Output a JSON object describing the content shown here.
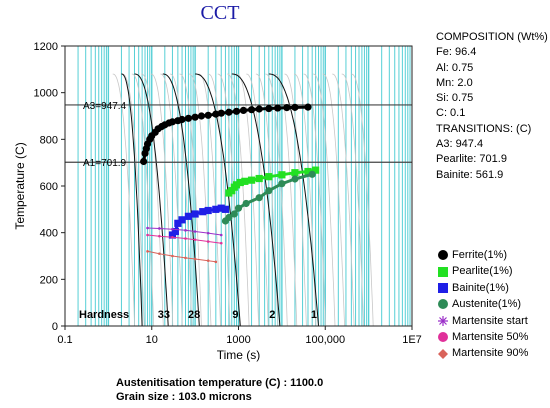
{
  "title": "CCT",
  "composition": {
    "heading": "COMPOSITION (Wt%)",
    "items": [
      "Fe: 96.4",
      "Al: 0.75",
      "Mn: 2.0",
      "Si: 0.75",
      "C: 0.1"
    ]
  },
  "transitions": {
    "heading": "TRANSITIONS: (C)",
    "items": [
      "A3: 947.4",
      "Pearlite: 701.9",
      "Bainite: 561.9"
    ]
  },
  "legend": [
    {
      "label": "Ferrite(1%)",
      "shape": "circle",
      "color": "#000000"
    },
    {
      "label": "Pearlite(1%)",
      "shape": "square",
      "color": "#22e022"
    },
    {
      "label": "Bainite(1%)",
      "shape": "square",
      "color": "#1f1fe6"
    },
    {
      "label": "Austenite(1%)",
      "shape": "circle",
      "color": "#2e8b57"
    },
    {
      "label": "Martensite start",
      "shape": "asterisk",
      "color": "#9b30c9"
    },
    {
      "label": "Martensite 50%",
      "shape": "circle",
      "color": "#e0309a"
    },
    {
      "label": "Martensite 90%",
      "shape": "diamond",
      "color": "#d9635a"
    }
  ],
  "footer": {
    "austenitisation": "Austenitisation temperature (C) : 1100.0",
    "grain": "Grain size : 103.0 microns"
  },
  "chart_data": {
    "type": "line",
    "xlabel": "Time (s)",
    "ylabel": "Temperature (C)",
    "x_scale": "log",
    "xlim": [
      0.1,
      10000000
    ],
    "ylim": [
      0,
      1200
    ],
    "x_ticks": [
      {
        "value": 0.1,
        "label": "0.1"
      },
      {
        "value": 10,
        "label": "10"
      },
      {
        "value": 1000,
        "label": "1000"
      },
      {
        "value": 100000,
        "label": "100,000"
      },
      {
        "value": 10000000,
        "label": "1E7"
      }
    ],
    "y_ticks": [
      0,
      200,
      400,
      600,
      800,
      1000,
      1200
    ],
    "reference_lines": [
      {
        "label": "A3=947.4",
        "value": 947.4
      },
      {
        "label": "A1=701.9",
        "value": 701.9
      }
    ],
    "hardness": {
      "label": "Hardness",
      "values": [
        {
          "value": "33",
          "time": 19
        },
        {
          "value": "28",
          "time": 95
        },
        {
          "value": "9",
          "time": 850
        },
        {
          "value": "2",
          "time": 6000
        },
        {
          "value": "1",
          "time": 55000
        }
      ]
    },
    "cooling_curves": [
      {
        "start_time": 2,
        "end_time": 6
      },
      {
        "start_time": 4,
        "end_time": 24
      },
      {
        "start_time": 18,
        "end_time": 125
      },
      {
        "start_time": 100,
        "end_time": 1100
      },
      {
        "start_time": 700,
        "end_time": 9000
      },
      {
        "start_time": 5000,
        "end_time": 70000
      }
    ],
    "series": [
      {
        "name": "Ferrite(1%)",
        "marker": "circle",
        "color": "#000000",
        "points": [
          [
            6.5,
            705
          ],
          [
            7,
            740
          ],
          [
            7.5,
            760
          ],
          [
            8,
            780
          ],
          [
            9,
            800
          ],
          [
            10,
            815
          ],
          [
            12,
            830
          ],
          [
            14,
            845
          ],
          [
            17,
            855
          ],
          [
            20,
            862
          ],
          [
            25,
            870
          ],
          [
            30,
            875
          ],
          [
            40,
            880
          ],
          [
            50,
            885
          ],
          [
            70,
            890
          ],
          [
            100,
            895
          ],
          [
            140,
            900
          ],
          [
            200,
            903
          ],
          [
            300,
            908
          ],
          [
            400,
            912
          ],
          [
            600,
            916
          ],
          [
            900,
            920
          ],
          [
            1300,
            924
          ],
          [
            2000,
            927
          ],
          [
            3000,
            930
          ],
          [
            5000,
            932
          ],
          [
            8000,
            934
          ],
          [
            13000,
            936
          ],
          [
            20000,
            937
          ],
          [
            40000,
            938
          ]
        ]
      },
      {
        "name": "Pearlite(1%)",
        "marker": "square",
        "color": "#22e022",
        "points": [
          [
            600,
            570
          ],
          [
            700,
            580
          ],
          [
            800,
            595
          ],
          [
            900,
            605
          ],
          [
            1100,
            615
          ],
          [
            1400,
            620
          ],
          [
            2000,
            625
          ],
          [
            3000,
            632
          ],
          [
            5000,
            640
          ],
          [
            10000,
            648
          ],
          [
            20000,
            657
          ],
          [
            40000,
            662
          ],
          [
            60000,
            668
          ]
        ]
      },
      {
        "name": "Bainite(1%)",
        "marker": "square",
        "color": "#1f1fe6",
        "points": [
          [
            30,
            390
          ],
          [
            35,
            405
          ],
          [
            40,
            440
          ],
          [
            50,
            455
          ],
          [
            70,
            470
          ],
          [
            100,
            480
          ],
          [
            150,
            490
          ],
          [
            200,
            495
          ],
          [
            300,
            500
          ],
          [
            400,
            505
          ],
          [
            500,
            500
          ]
        ]
      },
      {
        "name": "Austenite(1%)",
        "marker": "circle",
        "color": "#2e8b57",
        "points": [
          [
            500,
            450
          ],
          [
            600,
            465
          ],
          [
            800,
            480
          ],
          [
            1000,
            505
          ],
          [
            1500,
            525
          ],
          [
            3000,
            550
          ],
          [
            5000,
            580
          ],
          [
            10000,
            610
          ],
          [
            20000,
            630
          ],
          [
            50000,
            650
          ]
        ]
      },
      {
        "name": "Martensite start",
        "marker": "asterisk",
        "color": "#9b30c9",
        "points": [
          [
            8,
            420
          ],
          [
            15,
            418
          ],
          [
            30,
            415
          ],
          [
            60,
            410
          ],
          [
            100,
            405
          ],
          [
            200,
            398
          ],
          [
            400,
            390
          ]
        ]
      },
      {
        "name": "Martensite 50%",
        "marker": "circle",
        "color": "#e0309a",
        "points": [
          [
            8,
            390
          ],
          [
            15,
            385
          ],
          [
            30,
            380
          ],
          [
            60,
            375
          ],
          [
            100,
            370
          ],
          [
            200,
            362
          ],
          [
            400,
            355
          ]
        ]
      },
      {
        "name": "Martensite 90%",
        "marker": "diamond",
        "color": "#d9635a",
        "points": [
          [
            8,
            320
          ],
          [
            15,
            310
          ],
          [
            30,
            300
          ],
          [
            60,
            292
          ],
          [
            100,
            287
          ],
          [
            200,
            280
          ],
          [
            300,
            275
          ]
        ]
      }
    ]
  }
}
